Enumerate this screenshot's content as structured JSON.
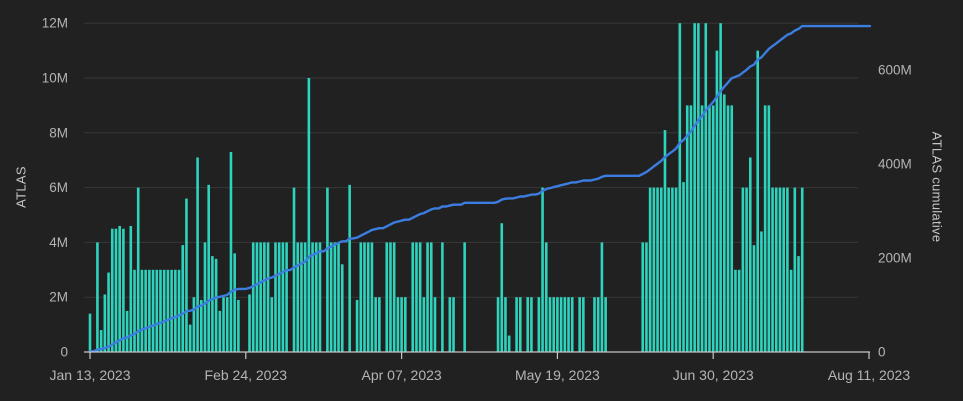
{
  "chart_data": {
    "type": "bar",
    "subtype": "bar-with-cumulative-line",
    "title": "",
    "left_axis": {
      "title": "ATLAS",
      "tick_labels": [
        "0",
        "2M",
        "4M",
        "6M",
        "8M",
        "10M",
        "12M"
      ],
      "tick_values_millions": [
        0,
        2,
        4,
        6,
        8,
        10,
        12
      ],
      "range_millions": [
        0,
        12
      ]
    },
    "right_axis": {
      "title": "ATLAS cumulative",
      "tick_labels": [
        "0",
        "200M",
        "400M",
        "600M"
      ],
      "tick_values_millions": [
        0,
        200,
        400,
        600
      ],
      "range_millions": [
        0,
        700
      ]
    },
    "x_axis": {
      "tick_labels": [
        "Jan 13, 2023",
        "Feb 24, 2023",
        "Apr 07, 2023",
        "May 19, 2023",
        "Jun 30, 2023",
        "Aug 11, 2023"
      ],
      "tick_day_offsets": [
        0,
        42,
        84,
        126,
        168,
        210
      ],
      "days_per_tick_interval": 42
    },
    "grid": "horizontal-only",
    "legend_position": "none",
    "series": [
      {
        "name": "ATLAS",
        "type": "bar",
        "axis": "left",
        "unit": "millions",
        "start_date": "Jan 13, 2023",
        "frequency": "daily",
        "values": [
          1.4,
          0,
          4,
          0.8,
          2.1,
          2.9,
          4.5,
          4.5,
          4.6,
          4.5,
          1.5,
          4.6,
          3,
          6,
          3,
          3,
          3,
          3,
          3,
          3,
          3,
          3,
          3,
          3,
          3,
          3.9,
          5.6,
          1,
          2,
          7.1,
          1.9,
          4,
          6.1,
          3.5,
          3.4,
          1.5,
          2,
          2,
          7.3,
          3.6,
          1.9,
          0,
          0,
          2.1,
          4,
          4,
          4,
          4,
          4,
          2,
          4,
          4,
          4,
          4,
          0,
          6,
          4,
          4,
          4,
          10,
          4,
          4,
          4,
          0,
          6,
          4,
          4,
          4,
          3.2,
          0,
          6.1,
          0,
          1.9,
          4,
          4,
          4,
          4,
          2,
          2,
          0,
          4,
          4,
          4,
          2,
          2,
          2,
          0,
          4,
          4,
          4,
          2,
          4,
          4,
          2,
          0,
          4,
          0,
          2,
          2,
          0,
          0,
          4,
          0,
          0,
          0,
          0,
          0,
          0,
          0,
          0,
          2,
          4.7,
          2,
          0.6,
          0,
          2,
          2,
          0,
          2,
          2,
          0,
          2,
          6,
          4,
          2,
          2,
          2,
          2,
          2,
          2,
          2,
          0,
          2,
          2,
          0,
          0,
          2,
          2,
          4,
          2,
          0,
          0,
          0,
          0,
          0,
          0,
          0,
          0,
          0,
          4,
          4,
          6,
          6,
          6,
          6,
          8.1,
          6,
          6,
          6,
          12,
          6.2,
          9,
          9,
          12,
          12,
          9,
          12,
          9,
          9,
          11,
          12,
          9.4,
          9,
          9,
          3,
          3,
          6,
          6,
          7.1,
          3.9,
          11,
          4.4,
          9,
          9,
          6,
          6,
          6,
          6,
          6,
          3,
          6,
          3.5,
          6
        ]
      },
      {
        "name": "ATLAS cumulative",
        "type": "line",
        "axis": "right",
        "unit": "millions",
        "derived_from": "cumulative sum of ATLAS daily bars",
        "final_value_millions_approx": 680
      }
    ],
    "colors": {
      "background": "#212121",
      "bar": "#2ed3bd",
      "line": "#3b7de0",
      "grid": "#373737",
      "axis_line": "#c7c7c7",
      "tick_label": "#b4b4b4",
      "axis_title": "#c6c6c6"
    }
  }
}
